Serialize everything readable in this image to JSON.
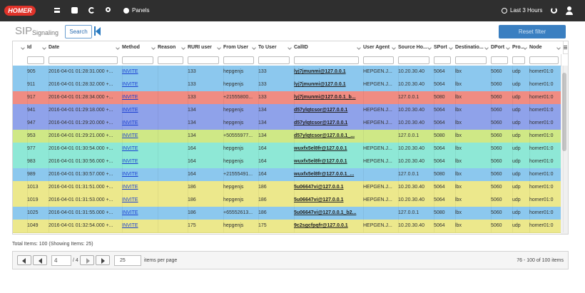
{
  "navbar": {
    "brand": "HOMER",
    "panels": "Panels",
    "time_range": "Last 3 Hours"
  },
  "header": {
    "title": "SIP",
    "subtitle": "Signaling",
    "search_button": "Search",
    "reset_button": "Reset filter"
  },
  "table": {
    "columns": [
      "Id",
      "Date",
      "Method",
      "Reason",
      "RURI user",
      "From User",
      "To User",
      "CallID",
      "User Agent",
      "Source Ho...",
      "SPort",
      "Destinatio...",
      "DPort",
      "Pro...",
      "Node"
    ],
    "rows": [
      {
        "color": "#8cc8ee",
        "cells": [
          "905",
          "2016-04-01 01:28:31.000 +...",
          "INVITE",
          null,
          "133",
          "hepgenjs",
          "133",
          "lyj7jmunmi@127.0.0.1",
          "HEPGEN.J...",
          "10.20.30.40",
          "5064",
          "lbx",
          "5060",
          "udp",
          "homer01:0"
        ]
      },
      {
        "color": "#8cc8ee",
        "cells": [
          "911",
          "2016-04-01 01:28:32.000 +...",
          "INVITE",
          null,
          "133",
          "hepgenjs",
          "133",
          "lyj7jmunmi@127.0.0.1",
          "HEPGEN.J...",
          "10.20.30.40",
          "5064",
          "lbx",
          "5060",
          "udp",
          "homer01:0"
        ]
      },
      {
        "color": "#f08c82",
        "cells": [
          "917",
          "2016-04-01 01:28:34.000 +...",
          "INVITE",
          null,
          "133",
          "+21555800...",
          "133",
          "lyj7jmunmi@127.0.0.1_b...",
          null,
          "127.0.0.1",
          "5080",
          "lbx",
          "5060",
          "udp",
          "homer01:0"
        ]
      },
      {
        "color": "#8fa2ea",
        "cells": [
          "941",
          "2016-04-01 01:29:18.000 +...",
          "INVITE",
          null,
          "134",
          "hepgenjs",
          "134",
          "d57ylqtcsor@127.0.0.1",
          "HEPGEN.J...",
          "10.20.30.40",
          "5064",
          "lbx",
          "5060",
          "udp",
          "homer01:0"
        ]
      },
      {
        "color": "#8fa2ea",
        "cells": [
          "947",
          "2016-04-01 01:29:20.000 +...",
          "INVITE",
          null,
          "134",
          "hepgenjs",
          "134",
          "d57ylqtcsor@127.0.0.1",
          "HEPGEN.J...",
          "10.20.30.40",
          "5064",
          "lbx",
          "5060",
          "udp",
          "homer01:0"
        ]
      },
      {
        "color": "#cfe886",
        "cells": [
          "953",
          "2016-04-01 01:29:21.000 +...",
          "INVITE",
          null,
          "134",
          "+50555977...",
          "134",
          "d57ylqtcsor@127.0.0.1_...",
          null,
          "127.0.0.1",
          "5080",
          "lbx",
          "5060",
          "udp",
          "homer01:0"
        ]
      },
      {
        "color": "#8ee8d6",
        "cells": [
          "977",
          "2016-04-01 01:30:54.000 +...",
          "INVITE",
          null,
          "164",
          "hepgenjs",
          "164",
          "wuxfx5el8fr@127.0.0.1",
          "HEPGEN.J...",
          "10.20.30.40",
          "5064",
          "lbx",
          "5060",
          "udp",
          "homer01:0"
        ]
      },
      {
        "color": "#8ee8d6",
        "cells": [
          "983",
          "2016-04-01 01:30:56.000 +...",
          "INVITE",
          null,
          "164",
          "hepgenjs",
          "164",
          "wuxfx5el8fr@127.0.0.1",
          "HEPGEN.J...",
          "10.20.30.40",
          "5064",
          "lbx",
          "5060",
          "udp",
          "homer01:0"
        ]
      },
      {
        "color": "#8cc8ee",
        "cells": [
          "989",
          "2016-04-01 01:30:57.000 +...",
          "INVITE",
          null,
          "164",
          "+21555491...",
          "164",
          "wuxfx5el8fr@127.0.0.1_...",
          null,
          "127.0.0.1",
          "5080",
          "lbx",
          "5060",
          "udp",
          "homer01:0"
        ]
      },
      {
        "color": "#ece88c",
        "cells": [
          "1013",
          "2016-04-01 01:31:51.000 +...",
          "INVITE",
          null,
          "186",
          "hepgenjs",
          "186",
          "5u06647vi@127.0.0.1",
          "HEPGEN.J...",
          "10.20.30.40",
          "5064",
          "lbx",
          "5060",
          "udp",
          "homer01:0"
        ]
      },
      {
        "color": "#ece88c",
        "cells": [
          "1019",
          "2016-04-01 01:31:53.000 +...",
          "INVITE",
          null,
          "186",
          "hepgenjs",
          "186",
          "5u06647vi@127.0.0.1",
          "HEPGEN.J...",
          "10.20.30.40",
          "5064",
          "lbx",
          "5060",
          "udp",
          "homer01:0"
        ]
      },
      {
        "color": "#8cc8ee",
        "cells": [
          "1025",
          "2016-04-01 01:31:55.000 +...",
          "INVITE",
          null,
          "186",
          "+65552613...",
          "186",
          "5u06647vi@127.0.0.1_b2...",
          null,
          "127.0.0.1",
          "5080",
          "lbx",
          "5060",
          "udp",
          "homer01:0"
        ]
      },
      {
        "color": "#ece88c",
        "cells": [
          "1049",
          "2016-04-01 01:32:54.000 +...",
          "INVITE",
          null,
          "175",
          "hepgenjs",
          "175",
          "9c2sgcfpqfr@127.0.0.1",
          "HEPGEN.J...",
          "10.20.30.40",
          "5064",
          "lbx",
          "5060",
          "udp",
          "homer01:0"
        ]
      }
    ]
  },
  "footer": {
    "total": "Total Items: 100 (Showing Items: 25)",
    "page": "4",
    "page_count": "/ 4",
    "page_size": "25",
    "per_page": "items per page",
    "range": "76 - 100 of 100 items"
  }
}
